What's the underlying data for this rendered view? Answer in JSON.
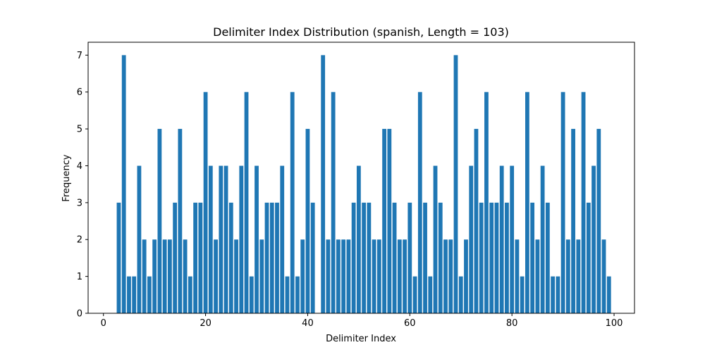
{
  "chart_data": {
    "type": "bar",
    "title": "Delimiter Index Distribution (spanish, Length = 103)",
    "xlabel": "Delimiter Index",
    "ylabel": "Frequency",
    "xlim": [
      -3,
      104
    ],
    "ylim": [
      0,
      7.35
    ],
    "xticks": [
      0,
      20,
      40,
      60,
      80,
      100
    ],
    "yticks": [
      0,
      1,
      2,
      3,
      4,
      5,
      6,
      7
    ],
    "grid": false,
    "bar_color": "#1f77b4",
    "x": [
      3,
      4,
      5,
      6,
      7,
      8,
      9,
      10,
      11,
      12,
      13,
      14,
      15,
      16,
      17,
      18,
      19,
      20,
      21,
      22,
      23,
      24,
      25,
      26,
      27,
      28,
      29,
      30,
      31,
      32,
      33,
      34,
      35,
      36,
      37,
      38,
      39,
      40,
      41,
      43,
      44,
      45,
      46,
      47,
      48,
      49,
      50,
      51,
      52,
      53,
      54,
      55,
      56,
      57,
      58,
      59,
      60,
      61,
      62,
      63,
      64,
      65,
      66,
      67,
      68,
      69,
      70,
      71,
      72,
      73,
      74,
      75,
      76,
      77,
      78,
      79,
      80,
      81,
      82,
      83,
      84,
      85,
      86,
      87,
      88,
      89,
      90,
      91,
      92,
      93,
      94,
      95,
      96,
      97,
      98,
      99
    ],
    "values": [
      3,
      7,
      1,
      1,
      4,
      2,
      1,
      2,
      5,
      2,
      2,
      3,
      5,
      2,
      1,
      3,
      3,
      6,
      4,
      2,
      4,
      4,
      3,
      2,
      4,
      6,
      1,
      4,
      2,
      3,
      3,
      3,
      4,
      1,
      6,
      1,
      2,
      5,
      3,
      7,
      2,
      6,
      2,
      2,
      2,
      3,
      4,
      3,
      3,
      2,
      2,
      5,
      5,
      3,
      2,
      2,
      3,
      1,
      6,
      3,
      1,
      4,
      3,
      2,
      2,
      7,
      1,
      2,
      4,
      5,
      3,
      6,
      3,
      3,
      4,
      3,
      4,
      2,
      1,
      6,
      3,
      2,
      4,
      3,
      1,
      1,
      6,
      2,
      5,
      2,
      6,
      3,
      4,
      5,
      2,
      1
    ]
  }
}
